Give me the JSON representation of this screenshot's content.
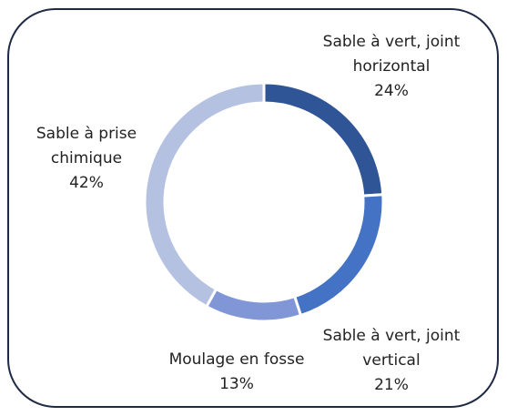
{
  "chart_data": {
    "type": "donut",
    "categories": [
      "Sable à vert, joint horizontal",
      "Sable à vert, joint vertical",
      "Moulage en fosse",
      "Sable à prise chimique"
    ],
    "values": [
      24,
      21,
      13,
      42
    ],
    "value_labels": [
      "24%",
      "21%",
      "13%",
      "42%"
    ],
    "colors": [
      "#2f5597",
      "#4472c4",
      "#8196d6",
      "#b4c1e1"
    ]
  }
}
